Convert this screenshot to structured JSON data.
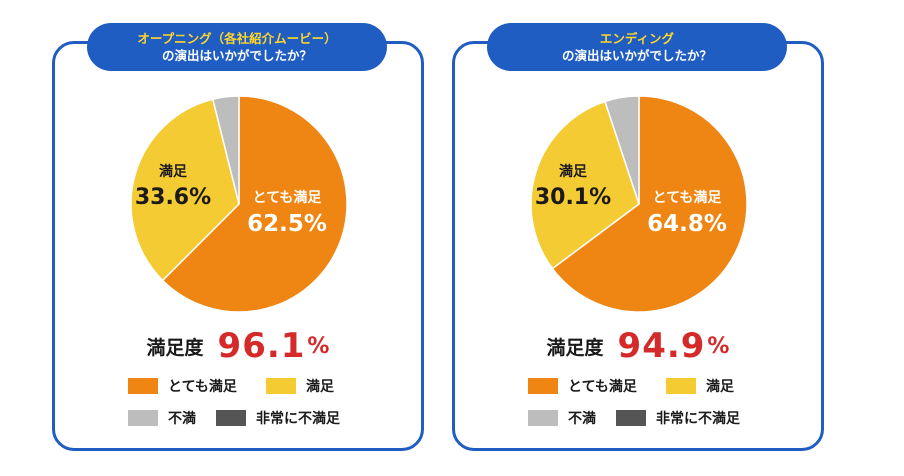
{
  "colors": {
    "very_satisfied": "#ef8513",
    "satisfied": "#f5cb34",
    "dissatisfied": "#bdbdbd",
    "very_dissatisfied": "#555555",
    "frame": "#1f5dc2",
    "accent_red": "#d42a2a"
  },
  "chart_data": [
    {
      "type": "pie",
      "title_line1": "オープニング（各社紹介ムービー）",
      "title_line2": "の演出はいかがでしたか？",
      "slices": [
        {
          "key": "very_satisfied",
          "name": "とても満足",
          "value": 62.5,
          "label_pct": "62.5%"
        },
        {
          "key": "satisfied",
          "name": "満足",
          "value": 33.6,
          "label_pct": "33.6%"
        },
        {
          "key": "dissatisfied",
          "name": "不満",
          "value": 3.9
        },
        {
          "key": "very_dissatisfied",
          "name": "非常に不満足",
          "value": 0.0
        }
      ],
      "satisfaction_label": "満足度",
      "satisfaction_value": "96.1",
      "satisfaction_unit": "%"
    },
    {
      "type": "pie",
      "title_line1": "エンディング",
      "title_line2": "の演出はいかがでしたか？",
      "slices": [
        {
          "key": "very_satisfied",
          "name": "とても満足",
          "value": 64.8,
          "label_pct": "64.8%"
        },
        {
          "key": "satisfied",
          "name": "満足",
          "value": 30.1,
          "label_pct": "30.1%"
        },
        {
          "key": "dissatisfied",
          "name": "不満",
          "value": 5.1
        },
        {
          "key": "very_dissatisfied",
          "name": "非常に不満足",
          "value": 0.0
        }
      ],
      "satisfaction_label": "満足度",
      "satisfaction_value": "94.9",
      "satisfaction_unit": "%"
    }
  ],
  "legend": [
    {
      "key": "very_satisfied",
      "label": "とても満足"
    },
    {
      "key": "satisfied",
      "label": "満足"
    },
    {
      "key": "dissatisfied",
      "label": "不満"
    },
    {
      "key": "very_dissatisfied",
      "label": "非常に不満足"
    }
  ]
}
